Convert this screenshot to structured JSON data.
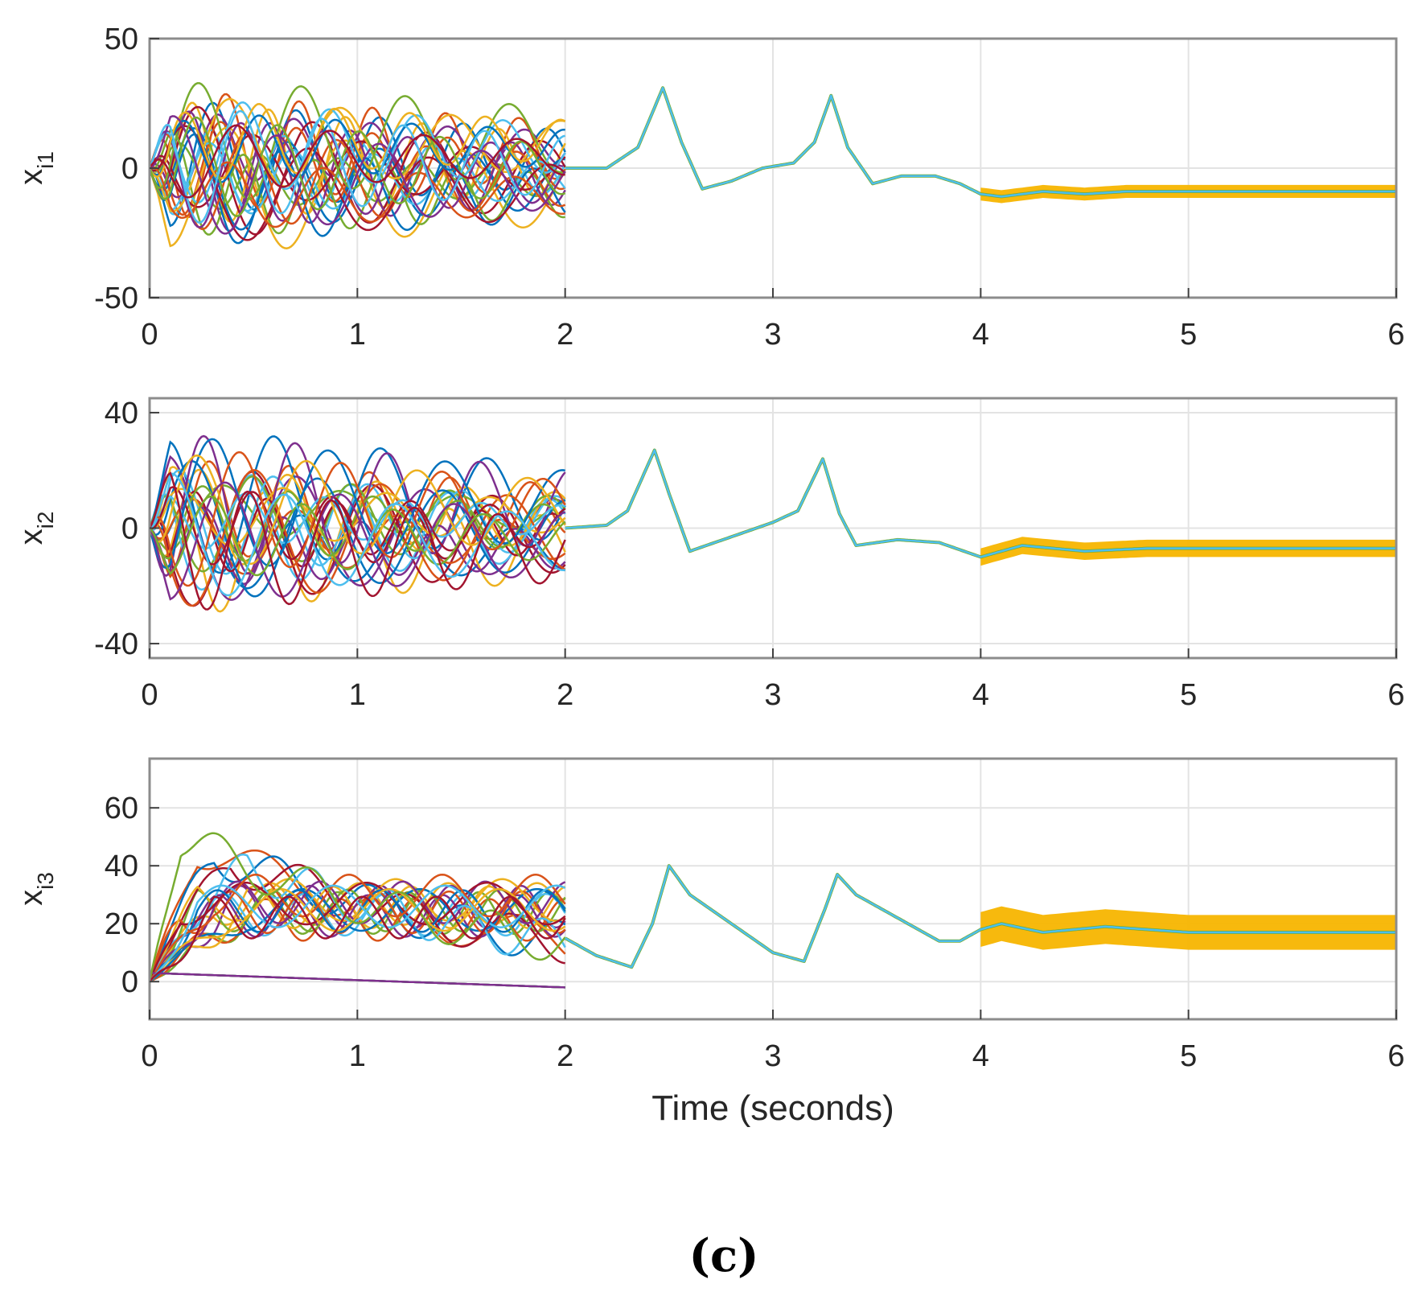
{
  "chart_data": [
    {
      "type": "line",
      "ylabel": "x",
      "ylabel_sub": "i1",
      "xlabel": "",
      "xlim": [
        0,
        6
      ],
      "ylim": [
        -50,
        50
      ],
      "xticks": [
        0,
        1,
        2,
        3,
        4,
        5,
        6
      ],
      "yticks": [
        -50,
        0,
        50
      ],
      "grid": true,
      "consensus": {
        "x": [
          2.0,
          2.2,
          2.35,
          2.47,
          2.56,
          2.66,
          2.8,
          2.95,
          3.1,
          3.2,
          3.28,
          3.36,
          3.48,
          3.62,
          3.78,
          3.9,
          4.0,
          4.1,
          4.3,
          4.5,
          4.7,
          5.0,
          5.5,
          6.0
        ],
        "y": [
          0,
          0,
          8,
          31,
          10,
          -8,
          -5,
          0,
          2,
          10,
          28,
          8,
          -6,
          -3,
          -3,
          -6,
          -10,
          -11,
          -9,
          -10,
          -9,
          -9,
          -9,
          -9
        ]
      },
      "band": {
        "x_start": 4.0,
        "x_end": 6.0,
        "center": -9,
        "half_width": 2.5
      }
    },
    {
      "type": "line",
      "ylabel": "x",
      "ylabel_sub": "i2",
      "xlabel": "",
      "xlim": [
        0,
        6
      ],
      "ylim": [
        -45,
        45
      ],
      "xticks": [
        0,
        1,
        2,
        3,
        4,
        5,
        6
      ],
      "yticks": [
        -40,
        0,
        40
      ],
      "grid": true,
      "consensus": {
        "x": [
          2.0,
          2.2,
          2.3,
          2.43,
          2.5,
          2.6,
          2.8,
          3.0,
          3.12,
          3.24,
          3.32,
          3.4,
          3.6,
          3.8,
          4.0,
          4.2,
          4.5,
          4.8,
          5.2,
          6.0
        ],
        "y": [
          0,
          1,
          6,
          27,
          12,
          -8,
          -3,
          2,
          6,
          24,
          5,
          -6,
          -4,
          -5,
          -10,
          -6,
          -8,
          -7,
          -7,
          -7
        ]
      },
      "band": {
        "x_start": 4.0,
        "x_end": 6.0,
        "center": -7,
        "half_width": 3
      }
    },
    {
      "type": "line",
      "ylabel": "x",
      "ylabel_sub": "i3",
      "xlabel": "Time (seconds)",
      "xlim": [
        0,
        6
      ],
      "ylim": [
        -13,
        77
      ],
      "xticks": [
        0,
        1,
        2,
        3,
        4,
        5,
        6
      ],
      "yticks": [
        0,
        20,
        40,
        60
      ],
      "grid": true,
      "consensus": {
        "x": [
          2.0,
          2.15,
          2.32,
          2.42,
          2.5,
          2.6,
          2.8,
          3.0,
          3.15,
          3.25,
          3.31,
          3.4,
          3.6,
          3.8,
          3.9,
          4.0,
          4.1,
          4.3,
          4.6,
          5.0,
          6.0
        ],
        "y": [
          15,
          9,
          5,
          20,
          40,
          30,
          20,
          10,
          7,
          25,
          37,
          30,
          22,
          14,
          14,
          18,
          20,
          17,
          19,
          17,
          17
        ]
      },
      "band": {
        "x_start": 4.0,
        "x_end": 6.0,
        "center": 15,
        "half_width": 6
      }
    }
  ],
  "caption": "(c)",
  "colors": [
    "#0072BD",
    "#D95319",
    "#EDB120",
    "#7E2F8E",
    "#77AC30",
    "#4DBEEE",
    "#A2142F"
  ],
  "band_color": "#F7B500"
}
